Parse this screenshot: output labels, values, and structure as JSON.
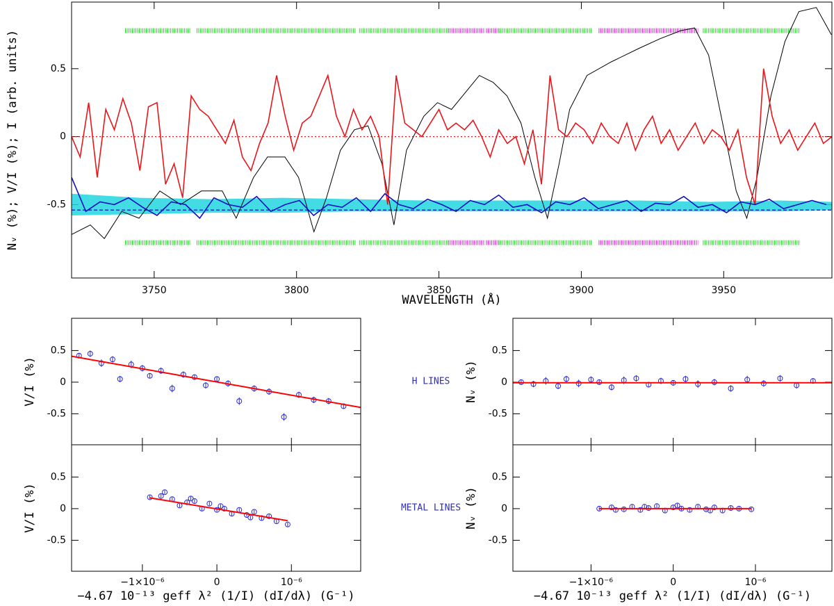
{
  "chart_data": [
    {
      "type": "line",
      "ylabel": "Nᵥ (%); V/I (%); I (arb. units)",
      "xlabel": "WAVELENGTH (Å)",
      "xlim": [
        3721,
        3988
      ],
      "ylim": [
        -1.04,
        0.99
      ],
      "xticks": [
        3750,
        3800,
        3850,
        3900,
        3950
      ],
      "yticks": [
        -0.5,
        0,
        0.5
      ],
      "band": {
        "color": "#22d6e0",
        "x": [
          3721,
          3745,
          3770,
          3795,
          3820,
          3845,
          3870,
          3895,
          3920,
          3945,
          3970,
          3988
        ],
        "low": [
          -0.58,
          -0.57,
          -0.56,
          -0.56,
          -0.55,
          -0.55,
          -0.55,
          -0.55,
          -0.55,
          -0.55,
          -0.55,
          -0.54
        ],
        "high": [
          -0.42,
          -0.45,
          -0.46,
          -0.45,
          -0.46,
          -0.47,
          -0.47,
          -0.47,
          -0.47,
          -0.48,
          -0.47,
          -0.48
        ]
      },
      "masks": {
        "y": [
          0.78,
          -0.78
        ],
        "segments": [
          {
            "color": "#22dd22",
            "range": [
              3739.8,
              3763
            ]
          },
          {
            "color": "#22dd22",
            "range": [
              3764.9,
              3821
            ]
          },
          {
            "color": "#22dd22",
            "range": [
              3822,
              3853.2
            ]
          },
          {
            "color": "#dd22dd",
            "range": [
              3853.2,
              3866.1
            ]
          },
          {
            "color": "#dd22dd",
            "range": [
              3866.6,
              3871
            ]
          },
          {
            "color": "#22dd22",
            "range": [
              3871,
              3903.7
            ]
          },
          {
            "color": "#dd22dd",
            "range": [
              3906.1,
              3941
            ]
          },
          {
            "color": "#22dd22",
            "range": [
              3942.7,
              3976.9
            ]
          }
        ]
      },
      "series": [
        {
          "color": "#000000",
          "x": [
            3721,
            3727.6,
            3732.5,
            3738.6,
            3744.7,
            3752,
            3759.3,
            3766.6,
            3773.9,
            3778.8,
            3784.9,
            3789.8,
            3795.9,
            3800.7,
            3806.1,
            3810.5,
            3815.4,
            3820.3,
            3825.1,
            3830,
            3834.2,
            3838.6,
            3844.7,
            3849.5,
            3854.4,
            3864.2,
            3869,
            3873.9,
            3878.8,
            3883.7,
            3888.1,
            3892.2,
            3895.9,
            3902,
            3910.5,
            3920.3,
            3927.6,
            3934.9,
            3939.8,
            3944.7,
            3949.6,
            3954.4,
            3958.1,
            3961.7,
            3966.6,
            3971.5,
            3976.4,
            3982.5,
            3987.8
          ],
          "values": [
            -0.72,
            -0.65,
            -0.75,
            -0.55,
            -0.6,
            -0.4,
            -0.5,
            -0.4,
            -0.4,
            -0.6,
            -0.3,
            -0.15,
            -0.15,
            -0.3,
            -0.7,
            -0.45,
            -0.1,
            0.05,
            0.08,
            -0.2,
            -0.65,
            -0.1,
            0.15,
            0.25,
            0.2,
            0.45,
            0.4,
            0.3,
            0.1,
            -0.3,
            -0.6,
            -0.2,
            0.2,
            0.45,
            0.55,
            0.65,
            0.72,
            0.78,
            0.8,
            0.6,
            0.1,
            -0.4,
            -0.6,
            -0.3,
            0.3,
            0.7,
            0.92,
            0.95,
            0.75
          ]
        },
        {
          "color": "#e8151b",
          "x": [
            3721,
            3724,
            3727,
            3730,
            3733,
            3736,
            3739,
            3742,
            3745,
            3748,
            3751,
            3754,
            3757,
            3760,
            3763,
            3766,
            3769,
            3772,
            3775,
            3778,
            3781,
            3784,
            3787,
            3790,
            3793,
            3796,
            3799,
            3802,
            3805,
            3808,
            3811,
            3814,
            3817,
            3820,
            3823,
            3826,
            3829,
            3832,
            3835,
            3838,
            3841,
            3844,
            3847,
            3850,
            3853,
            3856,
            3859,
            3862,
            3865,
            3868,
            3871,
            3874,
            3877,
            3880,
            3883,
            3886,
            3889,
            3892,
            3895,
            3898,
            3901,
            3904,
            3907,
            3910,
            3913,
            3916,
            3919,
            3922,
            3925,
            3928,
            3931,
            3934,
            3937,
            3940,
            3943,
            3946,
            3949,
            3952,
            3955,
            3958,
            3961,
            3964,
            3967,
            3970,
            3973,
            3976,
            3979,
            3982,
            3985,
            3988
          ],
          "values": [
            0.0,
            -0.15,
            0.25,
            -0.3,
            0.2,
            0.05,
            0.28,
            0.1,
            -0.25,
            0.22,
            0.25,
            -0.35,
            -0.2,
            -0.45,
            0.3,
            0.2,
            0.15,
            0.05,
            -0.05,
            0.12,
            -0.15,
            -0.25,
            -0.05,
            0.1,
            0.45,
            0.15,
            -0.1,
            0.1,
            0.15,
            0.3,
            0.45,
            0.15,
            0.0,
            0.2,
            0.05,
            0.15,
            0.0,
            -0.5,
            0.45,
            0.1,
            0.05,
            0.0,
            0.1,
            0.2,
            0.05,
            0.1,
            0.05,
            0.12,
            0.0,
            -0.15,
            0.05,
            -0.05,
            0.0,
            -0.2,
            0.05,
            -0.35,
            0.45,
            0.05,
            0.0,
            0.1,
            0.05,
            -0.05,
            0.1,
            0.0,
            -0.05,
            0.1,
            -0.1,
            0.05,
            0.15,
            -0.05,
            0.05,
            -0.1,
            0.0,
            0.1,
            -0.05,
            0.05,
            0.0,
            -0.1,
            0.05,
            -0.3,
            -0.5,
            0.5,
            0.15,
            -0.05,
            0.05,
            -0.1,
            0.0,
            0.1,
            -0.05,
            0.0
          ]
        },
        {
          "color": "#1010c0",
          "x": [
            3721,
            3726,
            3731,
            3736,
            3741,
            3746,
            3751,
            3756,
            3761,
            3766,
            3771,
            3776,
            3781,
            3786,
            3791,
            3796,
            3801,
            3806,
            3811,
            3816,
            3821,
            3826,
            3831,
            3836,
            3841,
            3846,
            3851,
            3856,
            3861,
            3866,
            3871,
            3876,
            3881,
            3886,
            3891,
            3896,
            3901,
            3906,
            3911,
            3916,
            3921,
            3926,
            3931,
            3936,
            3941,
            3946,
            3951,
            3956,
            3961,
            3966,
            3971,
            3976,
            3981,
            3986
          ],
          "values": [
            -0.3,
            -0.55,
            -0.48,
            -0.5,
            -0.45,
            -0.52,
            -0.58,
            -0.48,
            -0.5,
            -0.6,
            -0.45,
            -0.5,
            -0.52,
            -0.44,
            -0.55,
            -0.5,
            -0.47,
            -0.58,
            -0.5,
            -0.52,
            -0.45,
            -0.55,
            -0.42,
            -0.5,
            -0.53,
            -0.46,
            -0.5,
            -0.55,
            -0.47,
            -0.5,
            -0.43,
            -0.52,
            -0.5,
            -0.56,
            -0.48,
            -0.5,
            -0.45,
            -0.53,
            -0.5,
            -0.47,
            -0.55,
            -0.49,
            -0.5,
            -0.44,
            -0.52,
            -0.5,
            -0.56,
            -0.48,
            -0.5,
            -0.46,
            -0.53,
            -0.5,
            -0.47,
            -0.5
          ]
        }
      ],
      "reference_lines": [
        {
          "value": 0,
          "color": "#e8151b",
          "dash": "dotted"
        },
        {
          "value": -0.54,
          "color": "#1010c0",
          "dash": "dashed"
        }
      ]
    },
    {
      "type": "scatter",
      "ylabel": "V/I (%)",
      "annotation": "H LINES",
      "xlim": [
        -1.95e-06,
        1.93e-06
      ],
      "ylim": [
        -0.99,
        1.01
      ],
      "xticks": [
        -1e-06,
        0,
        1e-06
      ],
      "yticks": [
        -0.5,
        0,
        0.5
      ],
      "series": [
        {
          "color": "#2a2ad0",
          "x": [
            -1.85e-06,
            -1.7e-06,
            -1.55e-06,
            -1.4e-06,
            -1.3e-06,
            -1.15e-06,
            -1e-06,
            -9e-07,
            -7.5e-07,
            -6e-07,
            -4.5e-07,
            -3e-07,
            -1.5e-07,
            0,
            1.5e-07,
            3e-07,
            5e-07,
            7e-07,
            9e-07,
            1.1e-06,
            1.3e-06,
            1.5e-06,
            1.7e-06
          ],
          "values": [
            0.42,
            0.45,
            0.3,
            0.36,
            0.05,
            0.28,
            0.22,
            0.1,
            0.18,
            -0.1,
            0.12,
            0.08,
            -0.05,
            0.05,
            -0.02,
            -0.3,
            -0.1,
            -0.15,
            -0.55,
            -0.2,
            -0.28,
            -0.3,
            -0.38
          ],
          "errors": [
            0.04,
            0.05,
            0.06,
            0.05,
            0.05,
            0.06,
            0.05,
            0.04,
            0.05,
            0.06,
            0.05,
            0.04,
            0.05,
            0.04,
            0.05,
            0.06,
            0.05,
            0.05,
            0.06,
            0.05,
            0.05,
            0.05,
            0.04
          ]
        }
      ],
      "fit": {
        "color": "#ff0000",
        "x": [
          -1.95e-06,
          1.93e-06
        ],
        "values": [
          0.41,
          -0.4
        ]
      }
    },
    {
      "type": "scatter",
      "ylabel": "Nᵥ (%)",
      "xlim": [
        -1.95e-06,
        1.93e-06
      ],
      "ylim": [
        -0.99,
        1.01
      ],
      "xticks": [
        -1e-06,
        0,
        1e-06
      ],
      "yticks": [
        -0.5,
        0,
        0.5
      ],
      "series": [
        {
          "color": "#2a2ad0",
          "x": [
            -1.85e-06,
            -1.7e-06,
            -1.55e-06,
            -1.4e-06,
            -1.3e-06,
            -1.15e-06,
            -1e-06,
            -9e-07,
            -7.5e-07,
            -6e-07,
            -4.5e-07,
            -3e-07,
            -1.5e-07,
            0,
            1.5e-07,
            3e-07,
            5e-07,
            7e-07,
            9e-07,
            1.1e-06,
            1.3e-06,
            1.5e-06,
            1.7e-06
          ],
          "values": [
            0.0,
            -0.03,
            0.02,
            -0.06,
            0.05,
            -0.02,
            0.04,
            0.0,
            -0.08,
            0.03,
            0.06,
            -0.04,
            0.02,
            -0.01,
            0.05,
            -0.03,
            0.0,
            -0.1,
            0.04,
            -0.02,
            0.06,
            -0.05,
            0.02
          ],
          "errors": [
            0.04,
            0.05,
            0.06,
            0.05,
            0.05,
            0.06,
            0.05,
            0.04,
            0.05,
            0.06,
            0.05,
            0.04,
            0.05,
            0.04,
            0.05,
            0.06,
            0.05,
            0.05,
            0.06,
            0.05,
            0.05,
            0.05,
            0.04
          ]
        }
      ],
      "fit": {
        "color": "#ff0000",
        "x": [
          -1.95e-06,
          1.93e-06
        ],
        "values": [
          -0.01,
          -0.01
        ]
      }
    },
    {
      "type": "scatter",
      "ylabel": "V/I (%)",
      "annotation": "METAL LINES",
      "xlabel": "−4.67 10⁻¹³ geff λ² (1/I) (dI/dλ) (G⁻¹)",
      "xlim": [
        -1.95e-06,
        1.93e-06
      ],
      "ylim": [
        -0.99,
        1.01
      ],
      "xticks": [
        {
          "value": -1e-06,
          "label": "−1×10⁻⁶"
        },
        0,
        {
          "value": 1e-06,
          "label": "10⁻⁶"
        }
      ],
      "yticks": [
        -0.5,
        0,
        0.5
      ],
      "series": [
        {
          "color": "#2a2ad0",
          "x": [
            -9e-07,
            -7.5e-07,
            -6e-07,
            -5e-07,
            -4e-07,
            -3e-07,
            -2e-07,
            -1e-07,
            0,
            1e-07,
            2e-07,
            3e-07,
            4e-07,
            5e-07,
            6e-07,
            7e-07,
            8e-07,
            9.5e-07,
            -7e-07,
            -3.5e-07,
            5e-08,
            4.5e-07
          ],
          "values": [
            0.18,
            0.2,
            0.15,
            0.05,
            0.1,
            0.12,
            0.0,
            0.08,
            -0.02,
            0.0,
            -0.08,
            -0.02,
            -0.1,
            -0.05,
            -0.15,
            -0.12,
            -0.2,
            -0.25,
            0.26,
            0.16,
            0.04,
            -0.14
          ],
          "errors": [
            0.03,
            0.03,
            0.03,
            0.03,
            0.03,
            0.03,
            0.03,
            0.03,
            0.03,
            0.03,
            0.03,
            0.03,
            0.03,
            0.03,
            0.03,
            0.03,
            0.03,
            0.03,
            0.03,
            0.03,
            0.03,
            0.03
          ]
        }
      ],
      "fit": {
        "color": "#ff0000",
        "x": [
          -9e-07,
          9.5e-07
        ],
        "values": [
          0.17,
          -0.19
        ]
      }
    },
    {
      "type": "scatter",
      "ylabel": "Nᵥ (%)",
      "xlabel": "−4.67 10⁻¹³ geff λ² (1/I) (dI/dλ) (G⁻¹)",
      "xlim": [
        -1.95e-06,
        1.93e-06
      ],
      "ylim": [
        -0.99,
        1.01
      ],
      "xticks": [
        {
          "value": -1e-06,
          "label": "−1×10⁻⁶"
        },
        0,
        {
          "value": 1e-06,
          "label": "10⁻⁶"
        }
      ],
      "yticks": [
        -0.5,
        0,
        0.5
      ],
      "series": [
        {
          "color": "#2a2ad0",
          "x": [
            -9e-07,
            -7.5e-07,
            -6e-07,
            -5e-07,
            -4e-07,
            -3e-07,
            -2e-07,
            -1e-07,
            0,
            1e-07,
            2e-07,
            3e-07,
            4e-07,
            5e-07,
            6e-07,
            7e-07,
            8e-07,
            9.5e-07,
            -7e-07,
            -3.5e-07,
            5e-08,
            4.5e-07
          ],
          "values": [
            0.0,
            0.02,
            -0.01,
            0.03,
            -0.02,
            0.01,
            0.04,
            -0.03,
            0.02,
            0.0,
            -0.02,
            0.03,
            -0.01,
            0.02,
            -0.03,
            0.01,
            0.0,
            -0.01,
            -0.02,
            0.03,
            0.05,
            -0.03
          ],
          "errors": [
            0.03,
            0.03,
            0.03,
            0.03,
            0.03,
            0.03,
            0.03,
            0.03,
            0.03,
            0.03,
            0.03,
            0.03,
            0.03,
            0.03,
            0.03,
            0.03,
            0.03,
            0.03,
            0.03,
            0.03,
            0.03,
            0.03
          ]
        }
      ],
      "fit": {
        "color": "#ff0000",
        "x": [
          -9e-07,
          9.5e-07
        ],
        "values": [
          0,
          0
        ]
      }
    }
  ]
}
